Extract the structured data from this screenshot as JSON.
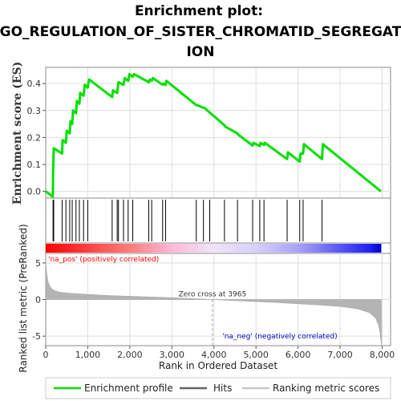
{
  "title_lines": [
    "Enrichment plot:",
    "GO_REGULATION_OF_SISTER_CHROMATID_SEGREGAT",
    "ION"
  ],
  "colors": {
    "enrichment": "#00e000",
    "hits": "#000000",
    "metric": "#b4b4b4",
    "pos": "#ff0000",
    "neg": "#0000ff",
    "pos_text": "#ff0000",
    "neg_text": "#0000cc"
  },
  "chart_data": [
    {
      "type": "line",
      "name": "enrichment-profile",
      "ylabel": "Enrichment score (ES)",
      "xlim": [
        0,
        8200
      ],
      "ylim": [
        -0.025,
        0.46
      ],
      "yticks": [
        "0.0",
        "0.1",
        "0.2",
        "0.3",
        "0.4"
      ],
      "ytick_values": [
        0,
        0.1,
        0.2,
        0.3,
        0.4
      ],
      "x": [
        0,
        170,
        175,
        190,
        390,
        400,
        480,
        500,
        570,
        590,
        630,
        650,
        720,
        740,
        800,
        820,
        900,
        930,
        1000,
        1030,
        1580,
        1600,
        1700,
        1730,
        1850,
        1880,
        1960,
        1990,
        2070,
        2100,
        2450,
        2480,
        2520,
        2550,
        2780,
        2800,
        2850,
        2870,
        3580,
        3600,
        3750,
        3770,
        4250,
        4270,
        4560,
        4580,
        4920,
        4940,
        5090,
        5110,
        5190,
        5210,
        5740,
        5760,
        6040,
        6060,
        6120,
        6140,
        6570,
        6590,
        7970
      ],
      "y": [
        0.0,
        -0.02,
        0.07,
        0.16,
        0.14,
        0.19,
        0.18,
        0.225,
        0.215,
        0.26,
        0.25,
        0.3,
        0.29,
        0.335,
        0.325,
        0.365,
        0.355,
        0.395,
        0.385,
        0.415,
        0.35,
        0.375,
        0.365,
        0.405,
        0.395,
        0.42,
        0.41,
        0.435,
        0.425,
        0.435,
        0.405,
        0.415,
        0.41,
        0.42,
        0.395,
        0.4,
        0.395,
        0.41,
        0.32,
        0.32,
        0.31,
        0.31,
        0.245,
        0.24,
        0.215,
        0.21,
        0.17,
        0.18,
        0.168,
        0.18,
        0.172,
        0.18,
        0.12,
        0.145,
        0.11,
        0.14,
        0.14,
        0.175,
        0.12,
        0.175,
        0.0
      ]
    },
    {
      "type": "scatter",
      "name": "hits",
      "x": [
        175,
        190,
        390,
        480,
        570,
        630,
        720,
        800,
        900,
        1000,
        1580,
        1700,
        1730,
        1850,
        1960,
        2070,
        2450,
        2520,
        2780,
        2850,
        3580,
        3750,
        3900,
        4250,
        4560,
        4920,
        5090,
        5190,
        5740,
        6040,
        6120,
        6570
      ]
    },
    {
      "type": "area",
      "name": "ranked-list-metric",
      "xlabel": "Rank in Ordered Dataset",
      "ylabel": "Ranked list metric (PreRanked)",
      "xlim": [
        0,
        8200
      ],
      "ylim": [
        -6.3,
        6.3
      ],
      "xticks": [
        "0",
        "1,000",
        "2,000",
        "3,000",
        "4,000",
        "5,000",
        "6,000",
        "7,000",
        "8,000"
      ],
      "xtick_values": [
        0,
        1000,
        2000,
        3000,
        4000,
        5000,
        6000,
        7000,
        8000
      ],
      "yticks": [
        "-5",
        "0",
        "5"
      ],
      "ytick_values": [
        -5,
        0,
        5
      ],
      "x": [
        0,
        10,
        30,
        60,
        100,
        150,
        200,
        300,
        400,
        600,
        1000,
        1500,
        2000,
        2500,
        3000,
        3500,
        3965,
        4500,
        5000,
        5500,
        6000,
        6500,
        7000,
        7400,
        7700,
        7850,
        7920,
        7950,
        7970,
        7980
      ],
      "y": [
        5.4,
        4.5,
        3.3,
        2.4,
        1.8,
        1.45,
        1.25,
        1.05,
        0.95,
        0.85,
        0.7,
        0.55,
        0.45,
        0.35,
        0.25,
        0.12,
        0.0,
        -0.15,
        -0.28,
        -0.42,
        -0.58,
        -0.75,
        -0.95,
        -1.25,
        -1.8,
        -2.6,
        -3.6,
        -4.6,
        -5.6,
        -6.2
      ],
      "annotations": {
        "pos": "'na_pos' (positively correlated)",
        "neg": "'na_neg' (negatively correlated)",
        "zero_cross": "Zero cross at 3965"
      },
      "zero_cross_x": 3965
    }
  ],
  "heatbar_stops": [
    {
      "x": 0,
      "color": "#ff0000"
    },
    {
      "x": 1200,
      "color": "#ff4d4d"
    },
    {
      "x": 2000,
      "color": "#ff7d7d"
    },
    {
      "x": 3000,
      "color": "#ffb8d8"
    },
    {
      "x": 3965,
      "color": "#f0e4f7"
    },
    {
      "x": 5000,
      "color": "#d7d0fb"
    },
    {
      "x": 6000,
      "color": "#a9a1fa"
    },
    {
      "x": 7000,
      "color": "#5757f6"
    },
    {
      "x": 7700,
      "color": "#2020f0"
    },
    {
      "x": 7980,
      "color": "#0000c8"
    }
  ],
  "legend": [
    {
      "label": "Enrichment profile",
      "kind": "line",
      "color": "#00e000"
    },
    {
      "label": "Hits",
      "kind": "line",
      "color": "#666666"
    },
    {
      "label": "Ranking metric scores",
      "kind": "line",
      "color": "#c8c8c8"
    }
  ]
}
